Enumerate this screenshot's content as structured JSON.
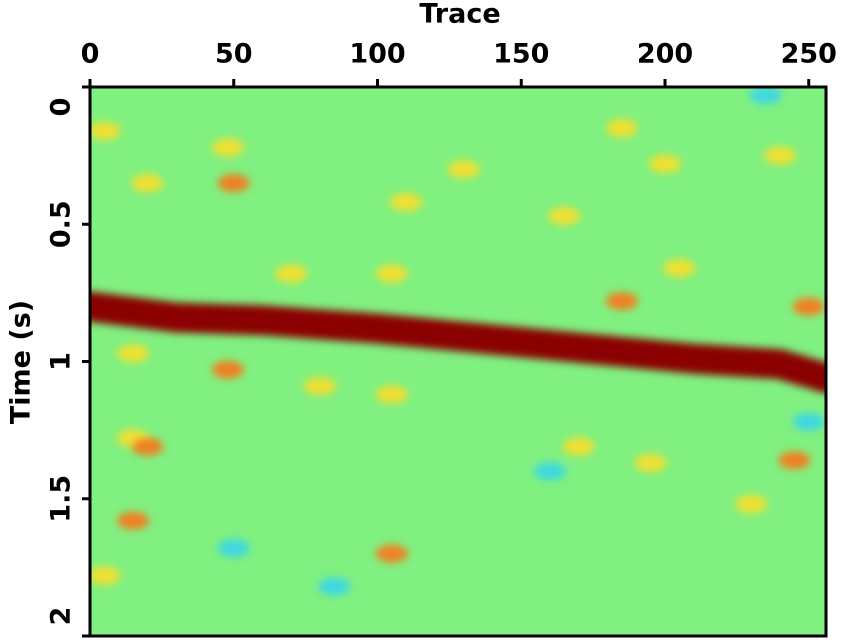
{
  "chart_data": {
    "type": "heatmap",
    "x_label": "Trace",
    "y_label": "Time (s)",
    "xlim": [
      0,
      256
    ],
    "xticks": [
      0,
      50,
      100,
      150,
      200,
      250
    ],
    "ylim": [
      0,
      2
    ],
    "yticks": [
      0,
      0.5,
      1,
      1.5,
      2
    ],
    "y_inverted": true,
    "background": "#80f080",
    "series": [
      {
        "kind": "line",
        "color": "#8b0000",
        "x": [
          0,
          30,
          60,
          100,
          150,
          180,
          210,
          240,
          256
        ],
        "values": [
          0.8,
          0.84,
          0.85,
          0.88,
          0.93,
          0.96,
          0.99,
          1.01,
          1.06
        ]
      },
      {
        "kind": "scatter",
        "color": "#f0e030",
        "x": [
          5,
          48,
          20,
          110,
          70,
          105,
          165,
          185,
          200,
          205,
          240,
          15,
          80,
          105,
          170,
          15,
          5,
          230,
          250,
          195,
          130
        ],
        "values": [
          0.16,
          0.22,
          0.35,
          0.42,
          0.68,
          0.68,
          0.47,
          0.15,
          0.28,
          0.66,
          0.25,
          0.97,
          1.09,
          1.12,
          1.31,
          1.28,
          1.78,
          1.52,
          0.8,
          1.37,
          0.3
        ]
      },
      {
        "kind": "scatter",
        "color": "#f08020",
        "x": [
          50,
          48,
          20,
          185,
          105,
          15,
          250,
          245
        ],
        "values": [
          0.35,
          1.03,
          1.31,
          0.78,
          1.7,
          1.58,
          0.8,
          1.36
        ]
      },
      {
        "kind": "scatter",
        "color": "#40d8e0",
        "x": [
          235,
          50,
          85,
          250,
          160
        ],
        "values": [
          0.03,
          1.68,
          1.82,
          1.22,
          1.4
        ]
      }
    ]
  }
}
